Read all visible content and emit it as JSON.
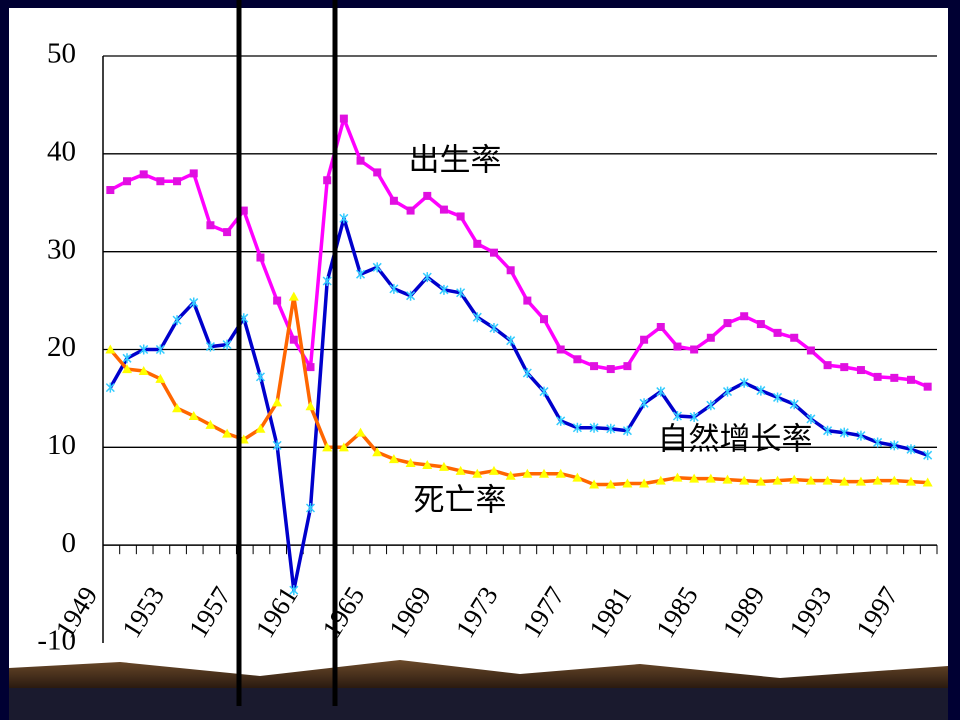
{
  "chart_data": {
    "type": "line",
    "categories": [
      "1949",
      null,
      null,
      null,
      "1953",
      null,
      null,
      null,
      "1957",
      null,
      null,
      null,
      "1961",
      null,
      null,
      null,
      "1965",
      null,
      null,
      null,
      "1969",
      null,
      null,
      null,
      "1973",
      null,
      null,
      null,
      "1977",
      null,
      null,
      null,
      "1981",
      null,
      null,
      null,
      "1985",
      null,
      null,
      null,
      "1989",
      null,
      null,
      null,
      "1993",
      null,
      null,
      null,
      "1997",
      null
    ],
    "series": [
      {
        "name": "出生率",
        "color": "#ff00ff",
        "marker": "square",
        "marker_color": "#e010e0",
        "values": [
          36.3,
          37.2,
          37.9,
          37.2,
          37.2,
          38.0,
          32.7,
          32.0,
          34.2,
          29.4,
          25.0,
          21.0,
          18.2,
          37.3,
          43.6,
          39.3,
          38.1,
          35.2,
          34.2,
          35.7,
          34.3,
          33.6,
          30.8,
          29.9,
          28.1,
          25.0,
          23.1,
          20.0,
          19.0,
          18.3,
          18.0,
          18.3,
          21.0,
          22.3,
          20.3,
          20.0,
          21.2,
          22.7,
          23.4,
          22.6,
          21.7,
          21.2,
          19.9,
          18.4,
          18.2,
          17.9,
          17.2,
          17.1,
          16.9,
          16.2
        ]
      },
      {
        "name": "自然增长率",
        "color": "#0000cc",
        "marker": "cross",
        "marker_color": "#33ccff",
        "values": [
          16.1,
          19.1,
          20.0,
          20.0,
          23.0,
          24.8,
          20.3,
          20.5,
          23.2,
          17.2,
          10.2,
          -4.6,
          3.8,
          27.0,
          33.4,
          27.7,
          28.4,
          26.2,
          25.5,
          27.4,
          26.1,
          25.8,
          23.3,
          22.2,
          20.9,
          17.6,
          15.7,
          12.7,
          12.0,
          12.0,
          11.9,
          11.7,
          14.5,
          15.7,
          13.2,
          13.1,
          14.3,
          15.7,
          16.6,
          15.8,
          15.1,
          14.4,
          12.9,
          11.7,
          11.5,
          11.2,
          10.5,
          10.2,
          9.8,
          9.2
        ]
      },
      {
        "name": "死亡率",
        "color": "#ff6600",
        "marker": "triangle",
        "marker_color": "#ffff00",
        "values": [
          20.0,
          18.0,
          17.8,
          17.0,
          14.0,
          13.2,
          12.3,
          11.4,
          10.8,
          11.9,
          14.6,
          25.4,
          14.2,
          10.0,
          10.0,
          11.5,
          9.5,
          8.8,
          8.4,
          8.2,
          8.0,
          7.6,
          7.3,
          7.6,
          7.1,
          7.3,
          7.3,
          7.3,
          6.9,
          6.2,
          6.2,
          6.3,
          6.3,
          6.6,
          6.9,
          6.8,
          6.8,
          6.7,
          6.6,
          6.5,
          6.6,
          6.7,
          6.6,
          6.6,
          6.5,
          6.5,
          6.6,
          6.6,
          6.5,
          6.4
        ]
      }
    ],
    "ylim": [
      -10,
      50
    ],
    "yticks": [
      -10,
      0,
      10,
      20,
      30,
      40,
      50
    ],
    "grid": true
  }
}
